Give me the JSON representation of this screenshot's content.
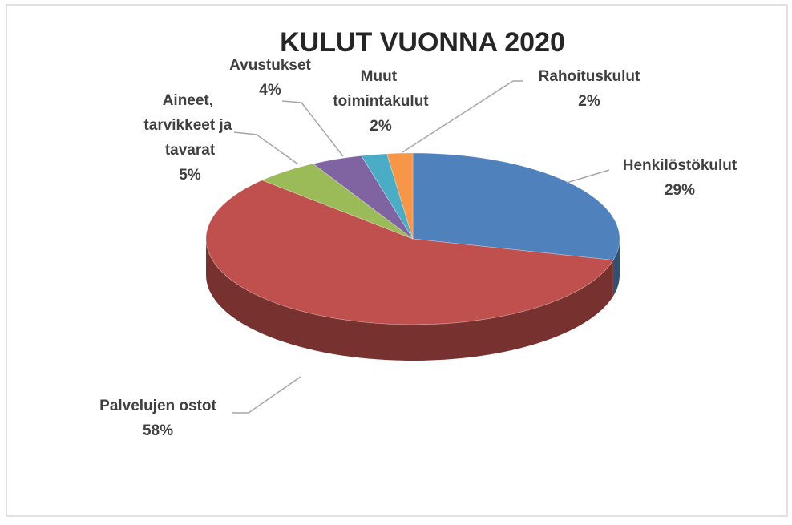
{
  "chart_data": {
    "type": "pie",
    "title": "KULUT VUONNA 2020",
    "categories": [
      "Henkilöstökulut",
      "Palvelujen ostot",
      "Aineet, tarvikkeet ja tavarat",
      "Avustukset",
      "Muut toimintakulut",
      "Rahoituskulut"
    ],
    "values": [
      29,
      58,
      5,
      4,
      2,
      2
    ],
    "value_labels": [
      "29%",
      "58%",
      "5%",
      "4%",
      "2%",
      "2%"
    ],
    "colors": [
      "#4f81bd",
      "#c0504d",
      "#9bbb59",
      "#8064a2",
      "#4bacc6",
      "#f79646"
    ]
  }
}
